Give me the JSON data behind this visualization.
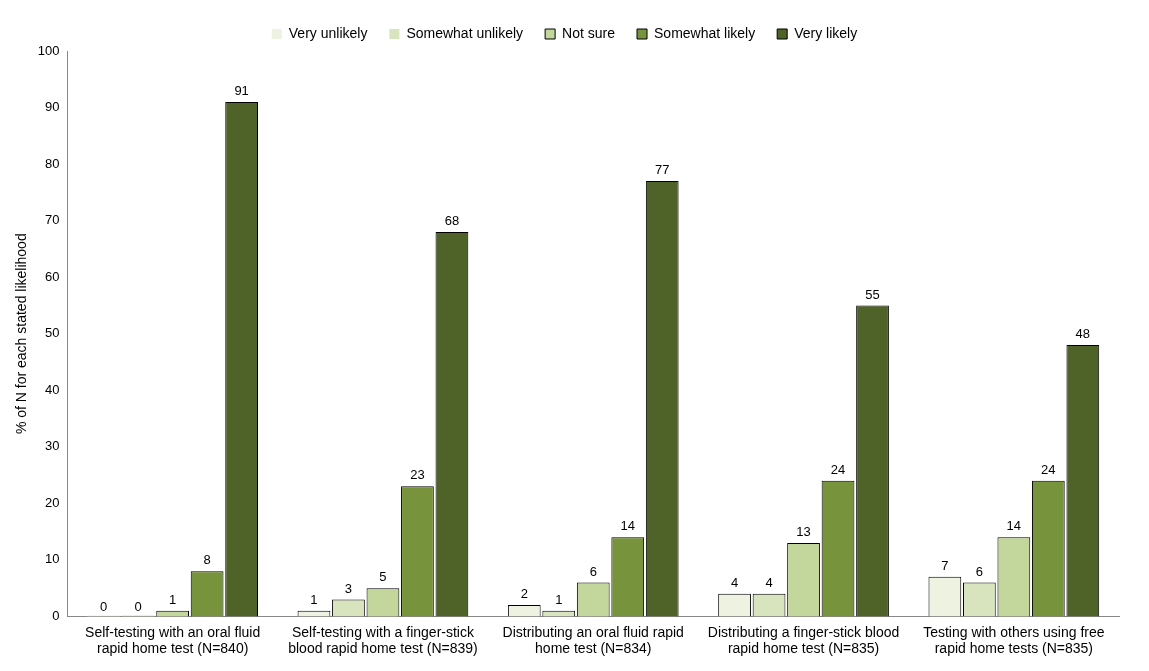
{
  "chart_data": {
    "type": "bar",
    "ylabel": "% of N for each stated likelihood",
    "categories": [
      "Self-testing with an oral fluid rapid home test (N=840)",
      "Self-testing with a finger-stick blood rapid home test (N=839)",
      "Distributing an oral fluid rapid home test (N=834)",
      "Distributing a finger-stick blood rapid home test (N=835)",
      "Testing with others using free rapid home tests (N=835)"
    ],
    "series": [
      {
        "name": "Very unlikely",
        "color": "#eef2e1",
        "values": [
          0,
          1,
          2,
          4,
          7
        ]
      },
      {
        "name": "Somewhat unlikely",
        "color": "#d7e4bd",
        "values": [
          0,
          3,
          1,
          4,
          6
        ]
      },
      {
        "name": "Not sure",
        "color": "#c3d69b",
        "values": [
          1,
          5,
          6,
          13,
          14
        ]
      },
      {
        "name": "Somewhat likely",
        "color": "#77933c",
        "values": [
          8,
          23,
          14,
          24,
          24
        ]
      },
      {
        "name": "Very likely",
        "color": "#4f6228",
        "values": [
          91,
          68,
          77,
          55,
          48
        ]
      }
    ],
    "ylim": [
      0,
      100
    ],
    "yticks": [
      0,
      10,
      20,
      30,
      40,
      50,
      60,
      70,
      80,
      90,
      100
    ],
    "grid": false,
    "legend": "top",
    "data_labels": true
  }
}
